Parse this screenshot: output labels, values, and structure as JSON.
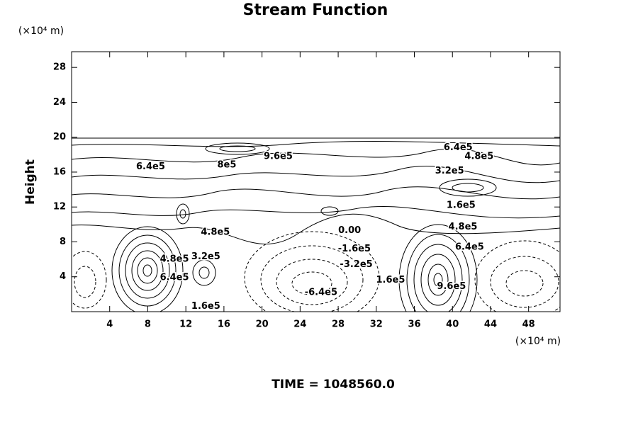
{
  "chart_data": {
    "type": "contour",
    "title": "Stream Function",
    "y_axis_label": "Height",
    "y_unit_label": "(×10⁴ m)",
    "x_unit_label": "(×10⁴ m)",
    "footer": "TIME = 1048560.0",
    "xlim": [
      0,
      51.3
    ],
    "ylim": [
      0,
      29.8
    ],
    "xticks": [
      4,
      8,
      12,
      16,
      20,
      24,
      28,
      32,
      36,
      40,
      44,
      48
    ],
    "yticks": [
      4,
      8,
      12,
      16,
      20,
      24,
      28
    ],
    "contour_labels": [
      {
        "value": 640000,
        "label": "6.4e5",
        "x": 8.3,
        "y": 16.6
      },
      {
        "value": 800000,
        "label": "8e5",
        "x": 16.3,
        "y": 16.8
      },
      {
        "value": 960000,
        "label": "9.6e5",
        "x": 21.7,
        "y": 17.8
      },
      {
        "value": 640000,
        "label": "6.4e5",
        "x": 40.6,
        "y": 18.8
      },
      {
        "value": 480000,
        "label": "4.8e5",
        "x": 42.8,
        "y": 17.8
      },
      {
        "value": 320000,
        "label": "3.2e5",
        "x": 39.7,
        "y": 16.1
      },
      {
        "value": 160000,
        "label": "1.6e5",
        "x": 40.9,
        "y": 12.2
      },
      {
        "value": 480000,
        "label": "4.8e5",
        "x": 41.1,
        "y": 9.7
      },
      {
        "value": 480000,
        "label": "4.8e5",
        "x": 15.1,
        "y": 9.1
      },
      {
        "value": 0,
        "label": "0.00",
        "x": 29.2,
        "y": 9.3
      },
      {
        "value": -160000,
        "label": "-1.6e5",
        "x": 29.7,
        "y": 7.2
      },
      {
        "value": -320000,
        "label": "-3.2e5",
        "x": 29.9,
        "y": 5.4
      },
      {
        "value": -640000,
        "label": "-6.4e5",
        "x": 26.2,
        "y": 2.2
      },
      {
        "value": 320000,
        "label": "3.2e5",
        "x": 14.1,
        "y": 6.3
      },
      {
        "value": 160000,
        "label": "1.6e5",
        "x": 14.1,
        "y": 0.6
      },
      {
        "value": 480000,
        "label": "4.8e5",
        "x": 10.8,
        "y": 6.0
      },
      {
        "value": 640000,
        "label": "6.4e5",
        "x": 10.8,
        "y": 3.9
      },
      {
        "value": 160000,
        "label": "1.6e5",
        "x": 33.5,
        "y": 3.6
      },
      {
        "value": 960000,
        "label": "9.6e5",
        "x": 39.9,
        "y": 2.9
      },
      {
        "value": 640000,
        "label": "6.4e5",
        "x": 41.8,
        "y": 7.4
      }
    ]
  }
}
